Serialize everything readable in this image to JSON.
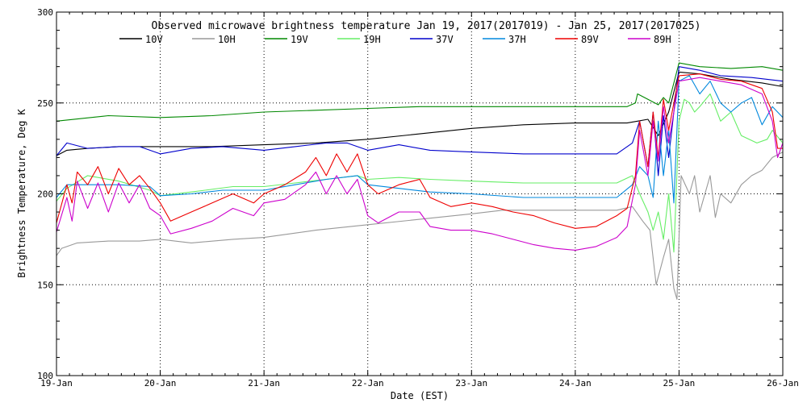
{
  "chart_data": {
    "type": "line",
    "title": "Observed microwave brightness temperature Jan 19, 2017(2017019) - Jan 25, 2017(2017025)",
    "xlabel": "Date (EST)",
    "ylabel": "Brightness Temperature, Deg K",
    "xlim": [
      0,
      7
    ],
    "ylim": [
      100,
      300
    ],
    "x_ticks": [
      {
        "value": 0,
        "label": "19-Jan"
      },
      {
        "value": 1,
        "label": "20-Jan"
      },
      {
        "value": 2,
        "label": "21-Jan"
      },
      {
        "value": 3,
        "label": "22-Jan"
      },
      {
        "value": 4,
        "label": "23-Jan"
      },
      {
        "value": 5,
        "label": "24-Jan"
      },
      {
        "value": 6,
        "label": "25-Jan"
      },
      {
        "value": 7,
        "label": "26-Jan"
      }
    ],
    "y_ticks": [
      100,
      150,
      200,
      250,
      300
    ],
    "grid": true,
    "legend_position": "top",
    "series": [
      {
        "name": "10V",
        "color": "#000000",
        "points": [
          [
            0,
            221
          ],
          [
            0.1,
            224
          ],
          [
            0.3,
            225
          ],
          [
            0.6,
            226
          ],
          [
            1,
            226
          ],
          [
            1.5,
            226
          ],
          [
            2,
            227
          ],
          [
            2.5,
            228
          ],
          [
            3,
            230
          ],
          [
            3.5,
            233
          ],
          [
            4,
            236
          ],
          [
            4.5,
            238
          ],
          [
            5,
            239
          ],
          [
            5.5,
            239
          ],
          [
            5.6,
            240
          ],
          [
            5.7,
            241
          ],
          [
            5.8,
            232
          ],
          [
            5.9,
            245
          ],
          [
            6,
            267
          ],
          [
            6.2,
            266
          ],
          [
            6.5,
            263
          ],
          [
            6.8,
            261
          ],
          [
            7,
            259
          ]
        ]
      },
      {
        "name": "10H",
        "color": "#999999",
        "points": [
          [
            0,
            166
          ],
          [
            0.05,
            170
          ],
          [
            0.2,
            173
          ],
          [
            0.5,
            174
          ],
          [
            0.8,
            174
          ],
          [
            1,
            175
          ],
          [
            1.3,
            173
          ],
          [
            1.7,
            175
          ],
          [
            2,
            176
          ],
          [
            2.5,
            180
          ],
          [
            3,
            183
          ],
          [
            3.5,
            186
          ],
          [
            4,
            189
          ],
          [
            4.3,
            191
          ],
          [
            4.7,
            191
          ],
          [
            5,
            191
          ],
          [
            5.4,
            191
          ],
          [
            5.55,
            193
          ],
          [
            5.65,
            185
          ],
          [
            5.72,
            180
          ],
          [
            5.78,
            150
          ],
          [
            5.85,
            165
          ],
          [
            5.9,
            175
          ],
          [
            5.95,
            148
          ],
          [
            5.98,
            142
          ],
          [
            6.02,
            210
          ],
          [
            6.1,
            200
          ],
          [
            6.15,
            210
          ],
          [
            6.2,
            190
          ],
          [
            6.3,
            210
          ],
          [
            6.35,
            187
          ],
          [
            6.4,
            200
          ],
          [
            6.5,
            195
          ],
          [
            6.6,
            205
          ],
          [
            6.7,
            210
          ],
          [
            6.8,
            213
          ],
          [
            6.9,
            220
          ],
          [
            7,
            223
          ]
        ]
      },
      {
        "name": "19V",
        "color": "#008800",
        "points": [
          [
            0,
            240
          ],
          [
            0.5,
            243
          ],
          [
            1,
            242
          ],
          [
            1.5,
            243
          ],
          [
            2,
            245
          ],
          [
            2.5,
            246
          ],
          [
            3,
            247
          ],
          [
            3.5,
            248
          ],
          [
            4,
            248
          ],
          [
            4.5,
            248
          ],
          [
            5,
            248
          ],
          [
            5.5,
            248
          ],
          [
            5.58,
            250
          ],
          [
            5.6,
            255
          ],
          [
            5.7,
            252
          ],
          [
            5.8,
            249
          ],
          [
            5.85,
            253
          ],
          [
            5.9,
            250
          ],
          [
            6,
            272
          ],
          [
            6.2,
            270
          ],
          [
            6.5,
            269
          ],
          [
            6.8,
            270
          ],
          [
            7,
            268
          ]
        ]
      },
      {
        "name": "19H",
        "color": "#66ee66",
        "points": [
          [
            0,
            196
          ],
          [
            0.1,
            203
          ],
          [
            0.3,
            210
          ],
          [
            0.6,
            207
          ],
          [
            0.9,
            202
          ],
          [
            1,
            199
          ],
          [
            1.3,
            201
          ],
          [
            1.7,
            204
          ],
          [
            2,
            204
          ],
          [
            2.3,
            206
          ],
          [
            2.6,
            208
          ],
          [
            2.9,
            210
          ],
          [
            3,
            208
          ],
          [
            3.3,
            209
          ],
          [
            3.6,
            208
          ],
          [
            4,
            207
          ],
          [
            4.5,
            206
          ],
          [
            5,
            206
          ],
          [
            5.4,
            206
          ],
          [
            5.55,
            210
          ],
          [
            5.62,
            200
          ],
          [
            5.7,
            190
          ],
          [
            5.75,
            180
          ],
          [
            5.8,
            190
          ],
          [
            5.85,
            175
          ],
          [
            5.9,
            200
          ],
          [
            5.95,
            168
          ],
          [
            6,
            240
          ],
          [
            6.05,
            252
          ],
          [
            6.1,
            250
          ],
          [
            6.15,
            245
          ],
          [
            6.2,
            248
          ],
          [
            6.3,
            255
          ],
          [
            6.4,
            240
          ],
          [
            6.5,
            245
          ],
          [
            6.6,
            232
          ],
          [
            6.75,
            228
          ],
          [
            6.85,
            230
          ],
          [
            6.9,
            235
          ],
          [
            7,
            228
          ]
        ]
      },
      {
        "name": "37V",
        "color": "#0000cc",
        "points": [
          [
            0,
            221
          ],
          [
            0.1,
            228
          ],
          [
            0.3,
            225
          ],
          [
            0.6,
            226
          ],
          [
            0.8,
            226
          ],
          [
            1,
            222
          ],
          [
            1.3,
            225
          ],
          [
            1.6,
            226
          ],
          [
            2,
            224
          ],
          [
            2.3,
            226
          ],
          [
            2.6,
            228
          ],
          [
            2.8,
            228
          ],
          [
            3,
            224
          ],
          [
            3.3,
            227
          ],
          [
            3.6,
            224
          ],
          [
            4,
            223
          ],
          [
            4.5,
            222
          ],
          [
            5,
            222
          ],
          [
            5.4,
            222
          ],
          [
            5.55,
            228
          ],
          [
            5.62,
            240
          ],
          [
            5.7,
            215
          ],
          [
            5.75,
            245
          ],
          [
            5.8,
            210
          ],
          [
            5.85,
            243
          ],
          [
            5.9,
            220
          ],
          [
            5.95,
            245
          ],
          [
            6,
            270
          ],
          [
            6.2,
            268
          ],
          [
            6.4,
            265
          ],
          [
            6.7,
            264
          ],
          [
            7,
            262
          ]
        ]
      },
      {
        "name": "37H",
        "color": "#0088dd",
        "points": [
          [
            0,
            198
          ],
          [
            0.1,
            205
          ],
          [
            0.3,
            205
          ],
          [
            0.6,
            205
          ],
          [
            0.9,
            204
          ],
          [
            1,
            199
          ],
          [
            1.3,
            200
          ],
          [
            1.6,
            202
          ],
          [
            2,
            202
          ],
          [
            2.3,
            205
          ],
          [
            2.6,
            208
          ],
          [
            2.9,
            210
          ],
          [
            3,
            205
          ],
          [
            3.3,
            203
          ],
          [
            3.6,
            201
          ],
          [
            4,
            200
          ],
          [
            4.5,
            198
          ],
          [
            5,
            198
          ],
          [
            5.4,
            198
          ],
          [
            5.55,
            205
          ],
          [
            5.62,
            215
          ],
          [
            5.7,
            210
          ],
          [
            5.75,
            198
          ],
          [
            5.8,
            240
          ],
          [
            5.85,
            210
          ],
          [
            5.9,
            235
          ],
          [
            5.95,
            195
          ],
          [
            6,
            262
          ],
          [
            6.1,
            265
          ],
          [
            6.2,
            255
          ],
          [
            6.3,
            262
          ],
          [
            6.4,
            250
          ],
          [
            6.5,
            245
          ],
          [
            6.6,
            250
          ],
          [
            6.7,
            253
          ],
          [
            6.8,
            238
          ],
          [
            6.9,
            248
          ],
          [
            7,
            242
          ]
        ]
      },
      {
        "name": "89V",
        "color": "#ee0000",
        "points": [
          [
            0,
            184
          ],
          [
            0.1,
            205
          ],
          [
            0.15,
            195
          ],
          [
            0.2,
            212
          ],
          [
            0.3,
            205
          ],
          [
            0.4,
            215
          ],
          [
            0.5,
            200
          ],
          [
            0.6,
            214
          ],
          [
            0.7,
            205
          ],
          [
            0.8,
            210
          ],
          [
            0.9,
            203
          ],
          [
            1,
            195
          ],
          [
            1.1,
            185
          ],
          [
            1.3,
            190
          ],
          [
            1.5,
            195
          ],
          [
            1.7,
            200
          ],
          [
            1.9,
            195
          ],
          [
            2,
            200
          ],
          [
            2.2,
            205
          ],
          [
            2.4,
            212
          ],
          [
            2.5,
            220
          ],
          [
            2.6,
            210
          ],
          [
            2.7,
            222
          ],
          [
            2.8,
            212
          ],
          [
            2.9,
            222
          ],
          [
            3,
            205
          ],
          [
            3.1,
            200
          ],
          [
            3.3,
            205
          ],
          [
            3.5,
            208
          ],
          [
            3.6,
            198
          ],
          [
            3.8,
            193
          ],
          [
            4,
            195
          ],
          [
            4.2,
            193
          ],
          [
            4.4,
            190
          ],
          [
            4.6,
            188
          ],
          [
            4.8,
            184
          ],
          [
            5,
            181
          ],
          [
            5.2,
            182
          ],
          [
            5.4,
            188
          ],
          [
            5.5,
            192
          ],
          [
            5.58,
            210
          ],
          [
            5.62,
            240
          ],
          [
            5.7,
            215
          ],
          [
            5.75,
            245
          ],
          [
            5.8,
            220
          ],
          [
            5.85,
            252
          ],
          [
            5.9,
            235
          ],
          [
            5.95,
            250
          ],
          [
            6,
            265
          ],
          [
            6.2,
            266
          ],
          [
            6.4,
            263
          ],
          [
            6.6,
            262
          ],
          [
            6.8,
            258
          ],
          [
            6.9,
            245
          ],
          [
            6.95,
            225
          ],
          [
            7,
            225
          ]
        ]
      },
      {
        "name": "89H",
        "color": "#cc00cc",
        "points": [
          [
            0,
            179
          ],
          [
            0.1,
            198
          ],
          [
            0.15,
            185
          ],
          [
            0.2,
            207
          ],
          [
            0.3,
            192
          ],
          [
            0.4,
            206
          ],
          [
            0.5,
            190
          ],
          [
            0.6,
            206
          ],
          [
            0.7,
            195
          ],
          [
            0.8,
            205
          ],
          [
            0.9,
            192
          ],
          [
            1,
            188
          ],
          [
            1.1,
            178
          ],
          [
            1.3,
            181
          ],
          [
            1.5,
            185
          ],
          [
            1.7,
            192
          ],
          [
            1.9,
            188
          ],
          [
            2,
            195
          ],
          [
            2.2,
            197
          ],
          [
            2.4,
            205
          ],
          [
            2.5,
            212
          ],
          [
            2.6,
            200
          ],
          [
            2.7,
            210
          ],
          [
            2.8,
            200
          ],
          [
            2.9,
            208
          ],
          [
            3,
            188
          ],
          [
            3.1,
            184
          ],
          [
            3.3,
            190
          ],
          [
            3.5,
            190
          ],
          [
            3.6,
            182
          ],
          [
            3.8,
            180
          ],
          [
            4,
            180
          ],
          [
            4.2,
            178
          ],
          [
            4.4,
            175
          ],
          [
            4.6,
            172
          ],
          [
            4.8,
            170
          ],
          [
            5,
            169
          ],
          [
            5.2,
            171
          ],
          [
            5.4,
            176
          ],
          [
            5.5,
            182
          ],
          [
            5.58,
            205
          ],
          [
            5.62,
            235
          ],
          [
            5.7,
            210
          ],
          [
            5.75,
            240
          ],
          [
            5.8,
            218
          ],
          [
            5.85,
            248
          ],
          [
            5.9,
            228
          ],
          [
            5.95,
            245
          ],
          [
            6,
            262
          ],
          [
            6.2,
            264
          ],
          [
            6.4,
            262
          ],
          [
            6.6,
            260
          ],
          [
            6.8,
            255
          ],
          [
            6.9,
            240
          ],
          [
            6.95,
            220
          ],
          [
            7,
            228
          ]
        ]
      }
    ]
  }
}
